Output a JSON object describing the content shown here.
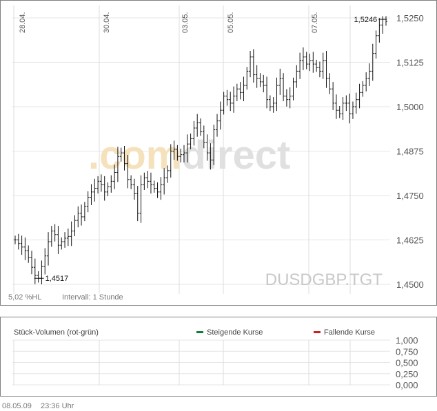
{
  "chart_data": {
    "type": "line",
    "symbol": "DUSDGBP.TGT",
    "watermark_prefix": ".com",
    "watermark_suffix": "direct",
    "interval_text": "Intervall: 1 Stunde",
    "range_text": "5,02 %HL",
    "y_ticks": [
      "1,5250",
      "1,5125",
      "1,5000",
      "1,4875",
      "1,4750",
      "1,4625",
      "1,4500"
    ],
    "y_values": [
      1.525,
      1.5125,
      1.5,
      1.4875,
      1.475,
      1.4625,
      1.45
    ],
    "ylim": [
      1.45,
      1.525
    ],
    "x_ticks": [
      "28.04.",
      "30.04.",
      "03.05.",
      "05.05.",
      "07.05."
    ],
    "high_label": "1,5246",
    "low_label": "1,4517",
    "high_value": 1.5246,
    "low_value": 1.4517,
    "grid": true,
    "series": [
      {
        "values": [
          1.4625,
          1.4615,
          1.4605,
          1.4595,
          1.4575,
          1.4548,
          1.4525,
          1.4517,
          1.455,
          1.458,
          1.462,
          1.465,
          1.464,
          1.461,
          1.462,
          1.463,
          1.4635,
          1.465,
          1.468,
          1.47,
          1.469,
          1.472,
          1.4745,
          1.476,
          1.477,
          1.479,
          1.478,
          1.476,
          1.4775,
          1.479,
          1.4815,
          1.486,
          1.487,
          1.484,
          1.4795,
          1.478,
          1.4755,
          1.47,
          1.478,
          1.48,
          1.479,
          1.478,
          1.477,
          1.476,
          1.478,
          1.48,
          1.482,
          1.4875,
          1.488,
          1.486,
          1.4865,
          1.487,
          1.4895,
          1.491,
          1.494,
          1.4955,
          1.493,
          1.49,
          1.487,
          1.485,
          1.4935,
          1.496,
          1.499,
          1.503,
          1.502,
          1.501,
          1.503,
          1.505,
          1.504,
          1.506,
          1.51,
          1.514,
          1.509,
          1.508,
          1.507,
          1.506,
          1.502,
          1.5,
          1.501,
          1.506,
          1.508,
          1.503,
          1.502,
          1.503,
          1.507,
          1.51,
          1.513,
          1.514,
          1.512,
          1.513,
          1.512,
          1.511,
          1.51,
          1.513,
          1.508,
          1.505,
          1.501,
          1.499,
          1.498,
          1.501,
          1.501,
          1.498,
          1.5,
          1.502,
          1.504,
          1.506,
          1.508,
          1.51,
          1.515,
          1.52,
          1.523,
          1.5246,
          1.524
        ]
      }
    ]
  },
  "volume_panel": {
    "title": "Stück-Volumen (rot-grün)",
    "legend_up": "Steigende Kurse",
    "legend_down": "Fallende Kurse",
    "up_color": "#1a7a3a",
    "down_color": "#cc2222",
    "y_ticks": [
      "1,000",
      "0,750",
      "0,500",
      "0,250",
      "0,000"
    ]
  },
  "footer": {
    "date": "08.05.09",
    "time": "23:36 Uhr"
  },
  "colors": {
    "watermark_prefix": "#f5e2bc",
    "watermark_suffix": "#e0e0e0",
    "symbol": "#c8c8c8"
  }
}
